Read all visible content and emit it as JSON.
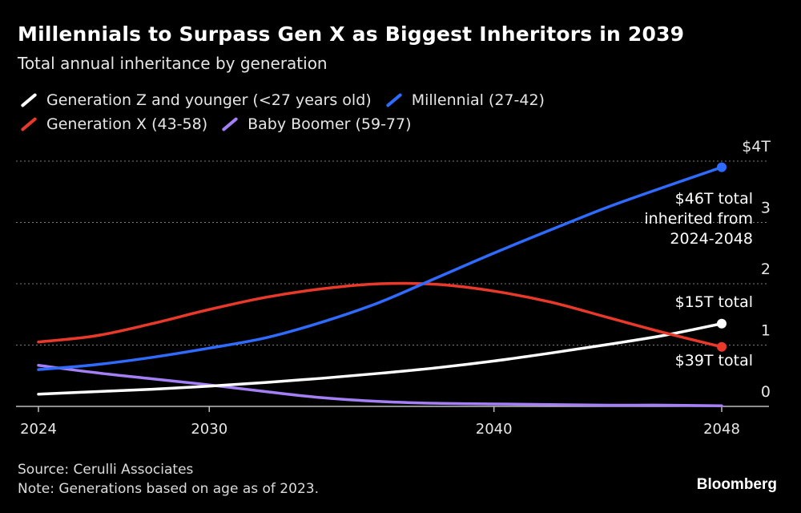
{
  "header": {
    "title": "Millennials to Surpass Gen X as Biggest Inheritors in 2039",
    "subtitle": "Total annual inheritance by generation"
  },
  "footer": {
    "source": "Source: Cerulli Associates",
    "note": "Note: Generations based on age as of 2023.",
    "brand": "Bloomberg"
  },
  "colors": {
    "background": "#000000",
    "genz": "#ffffff",
    "millennial": "#2f6bff",
    "genx": "#e8392b",
    "boomer": "#a57ff5",
    "grid": "#7a7a7a"
  },
  "chart_data": {
    "type": "line",
    "title": "Millennials to Surpass Gen X as Biggest Inheritors in 2039",
    "subtitle": "Total annual inheritance by generation",
    "xlabel": "",
    "ylabel": "",
    "xlim": [
      2024,
      2048
    ],
    "ylim": [
      0,
      4
    ],
    "x_ticks": [
      "2024",
      "2030",
      "2040",
      "2048"
    ],
    "x_tick_values": [
      2024,
      2030,
      2040,
      2048
    ],
    "y_ticks": [
      "0",
      "1",
      "2",
      "3",
      "$4T"
    ],
    "y_tick_values": [
      0,
      1,
      2,
      3,
      4
    ],
    "grid": true,
    "legend_position": "top-left",
    "x": [
      2024,
      2026,
      2028,
      2030,
      2032,
      2034,
      2036,
      2038,
      2040,
      2042,
      2044,
      2046,
      2048
    ],
    "series": [
      {
        "key": "genz",
        "name": "Generation Z and younger (<27 years old)",
        "color": "#ffffff",
        "values": [
          0.2,
          0.24,
          0.28,
          0.33,
          0.39,
          0.46,
          0.54,
          0.63,
          0.74,
          0.87,
          1.01,
          1.16,
          1.35
        ]
      },
      {
        "key": "millennial",
        "name": "Millennial (27-42)",
        "color": "#2f6bff",
        "values": [
          0.6,
          0.68,
          0.8,
          0.95,
          1.12,
          1.38,
          1.7,
          2.1,
          2.5,
          2.88,
          3.25,
          3.58,
          3.9
        ]
      },
      {
        "key": "genx",
        "name": "Generation X (43-58)",
        "color": "#e8392b",
        "values": [
          1.05,
          1.15,
          1.35,
          1.58,
          1.78,
          1.92,
          2.0,
          1.99,
          1.88,
          1.7,
          1.45,
          1.2,
          0.97
        ]
      },
      {
        "key": "boomer",
        "name": "Baby Boomer (59-77)",
        "color": "#a57ff5",
        "values": [
          0.67,
          0.55,
          0.45,
          0.35,
          0.24,
          0.14,
          0.08,
          0.05,
          0.04,
          0.03,
          0.02,
          0.02,
          0.01
        ]
      }
    ],
    "annotations": [
      {
        "series": "millennial",
        "lines": [
          "$46T total",
          "inherited from",
          "2024-2048"
        ]
      },
      {
        "series": "genz",
        "lines": [
          "$15T total"
        ]
      },
      {
        "series": "genx",
        "lines": [
          "$39T total"
        ]
      }
    ]
  }
}
